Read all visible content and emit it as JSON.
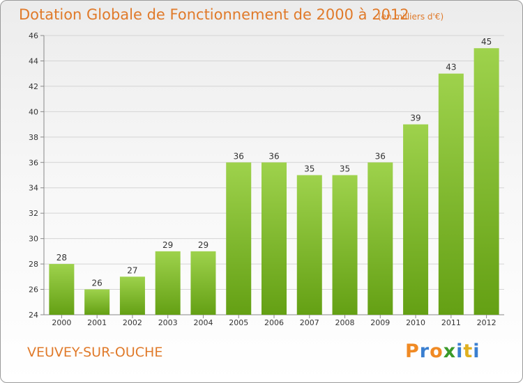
{
  "header": {
    "title": "Dotation Globale de Fonctionnement de 2000 à 2012",
    "subtitle": "(en milliers d'€)"
  },
  "footer": {
    "city": "VEUVEY-SUR-OUCHE",
    "logo_letters": [
      "P",
      "r",
      "o",
      "x",
      "i",
      "t",
      "i"
    ],
    "logo_colors": [
      "#f08a24",
      "#3a7fd0",
      "#f08a24",
      "#3a9a2a",
      "#3a7fd0",
      "#e0b020",
      "#3a7fd0"
    ]
  },
  "chart_data": {
    "type": "bar",
    "categories": [
      "2000",
      "2001",
      "2002",
      "2003",
      "2004",
      "2005",
      "2006",
      "2007",
      "2008",
      "2009",
      "2010",
      "2011",
      "2012"
    ],
    "values": [
      28,
      26,
      27,
      29,
      29,
      36,
      36,
      35,
      35,
      36,
      39,
      43,
      45
    ],
    "value_labels": [
      "28",
      "26",
      "27",
      "29",
      "29",
      "36",
      "36",
      "35",
      "35",
      "36",
      "39",
      "43",
      "45"
    ],
    "yticks": [
      "24",
      "26",
      "28",
      "30",
      "32",
      "34",
      "36",
      "38",
      "40",
      "42",
      "44",
      "46"
    ],
    "ylim": [
      24,
      46
    ],
    "grid": true,
    "bar_color_top": "#9ed24c",
    "bar_color_bottom": "#64a014"
  }
}
